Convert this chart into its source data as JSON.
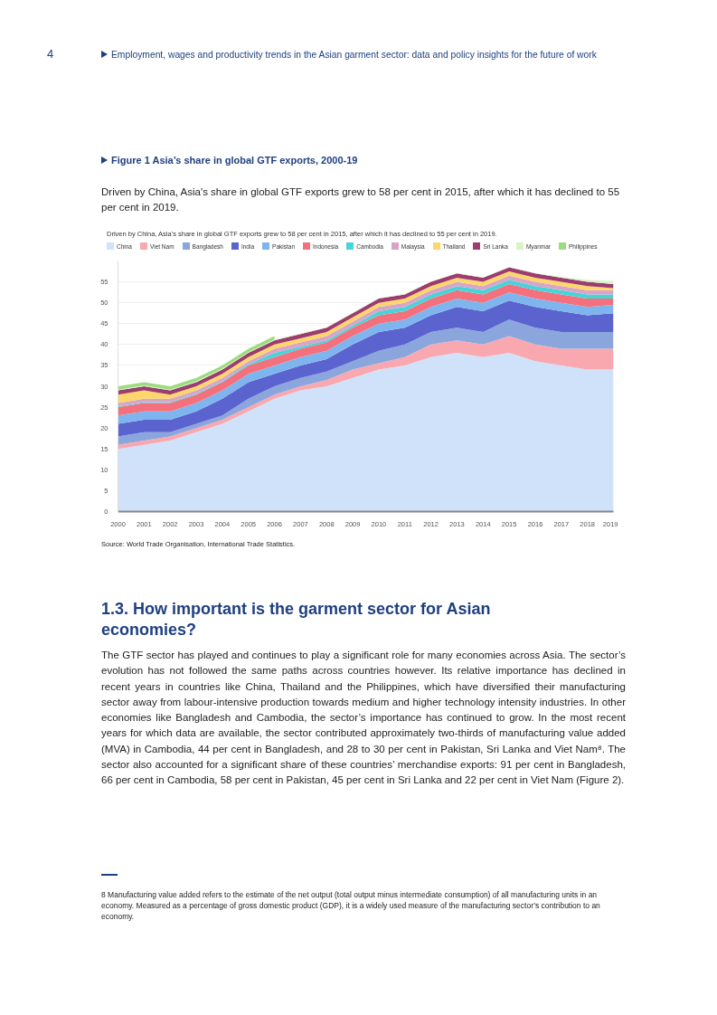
{
  "chart_data": {
    "type": "area",
    "stacked": true,
    "title": "Figure 1 Asia’s share in global GTF exports, 2000-19",
    "subtitle": "Driven by China, Asia's share in global GTF exports grew to 58 per cent in 2015, after which it has declined to 55 per cent in 2019.",
    "x": [
      2000,
      2001,
      2002,
      2003,
      2004,
      2005,
      2006,
      2007,
      2008,
      2009,
      2010,
      2011,
      2012,
      2013,
      2014,
      2015,
      2016,
      2017,
      2018,
      2019
    ],
    "series": [
      {
        "name": "China",
        "color": "#cfe2f9",
        "values": [
          15,
          16,
          17,
          19,
          21,
          24,
          27,
          29,
          30,
          32,
          34,
          35,
          37,
          38,
          37,
          38,
          36,
          35,
          34,
          34
        ]
      },
      {
        "name": "Viet Nam",
        "color": "#f9a8b0",
        "values": [
          1,
          1,
          1,
          1,
          1,
          1,
          1,
          1,
          1.5,
          2,
          1.5,
          2,
          3,
          3,
          3,
          4,
          4,
          4,
          5,
          5
        ]
      },
      {
        "name": "Bangladesh",
        "color": "#8ba6dc",
        "values": [
          2,
          2,
          1,
          1,
          1,
          2,
          2,
          2,
          2,
          2,
          3,
          3,
          3,
          3,
          3,
          4,
          4,
          4,
          4,
          4
        ]
      },
      {
        "name": "India",
        "color": "#5b63cf",
        "values": [
          3,
          3,
          3,
          3,
          4,
          4,
          3,
          3,
          3,
          4,
          4.5,
          4,
          4,
          5,
          5,
          4.5,
          5,
          5,
          4,
          4.5
        ]
      },
      {
        "name": "Pakistan",
        "color": "#7fb5ee",
        "values": [
          2,
          2,
          2,
          2,
          2,
          2,
          2,
          2,
          2,
          2,
          2,
          2,
          2,
          2,
          2,
          2,
          2,
          2,
          2,
          2
        ]
      },
      {
        "name": "Indonesia",
        "color": "#f3707c",
        "values": [
          2,
          2,
          2,
          2,
          2,
          2,
          2,
          2,
          2,
          2,
          2,
          2,
          2,
          2,
          2,
          2,
          2,
          2,
          2,
          1.5
        ]
      },
      {
        "name": "Cambodia",
        "color": "#46d4d8",
        "values": [
          0.2,
          0.2,
          0.2,
          0.2,
          0.2,
          0.3,
          1,
          0.5,
          0.5,
          0.5,
          1,
          1,
          1,
          1,
          1,
          1,
          1,
          1,
          1,
          1
        ]
      },
      {
        "name": "Malaysia",
        "color": "#d8a5c9",
        "values": [
          0.8,
          0.8,
          0.8,
          0.8,
          0.8,
          0.7,
          1,
          1,
          1,
          1,
          1,
          1,
          1,
          1,
          1,
          1,
          1,
          1,
          1,
          1
        ]
      },
      {
        "name": "Thailand",
        "color": "#fcd66b",
        "values": [
          2,
          2,
          1,
          1,
          1,
          1,
          1,
          1,
          1,
          1,
          1,
          1,
          1,
          1,
          1,
          1,
          1,
          1,
          1,
          0.5
        ]
      },
      {
        "name": "Sri Lanka",
        "color": "#9c3c6f",
        "values": [
          1,
          1,
          1,
          1,
          1,
          1,
          1,
          1,
          1,
          1,
          1,
          1,
          1,
          1,
          1,
          1,
          1,
          1,
          1,
          1
        ]
      },
      {
        "name": "Myanmar",
        "color": "#d9f2c8",
        "values": [
          0.2,
          0.2,
          0.2,
          0.2,
          0.2,
          0.2,
          0.2,
          0.1,
          0.1,
          0.1,
          0.1,
          0.1,
          0.1,
          0.1,
          0.1,
          0.1,
          0.1,
          0.2,
          0.5,
          0.7
        ]
      },
      {
        "name": "Philippines",
        "color": "#9bdc7d",
        "values": [
          0.8,
          0.8,
          0.8,
          0.8,
          0.8,
          0.8,
          0.8,
          null,
          null,
          null,
          null,
          null,
          null,
          null,
          null,
          null,
          null,
          null,
          null,
          null
        ]
      }
    ],
    "xlim": [
      2000,
      2019
    ],
    "xticks": [
      2000,
      2001,
      2002,
      2003,
      2004,
      2005,
      2006,
      2007,
      2008,
      2009,
      2010,
      2011,
      2012,
      2013,
      2014,
      2015,
      2016,
      2017,
      2018,
      2019
    ],
    "ylim": [
      0,
      60
    ],
    "yticks": [
      0,
      5,
      10,
      15,
      20,
      25,
      30,
      35,
      40,
      45,
      50,
      55
    ],
    "grid": "y",
    "legend": "top",
    "annotations": [
      "4",
      "Employment, wages and productivity trends in the Asian garment sector: data and policy insights for the future of work",
      "Driven by China, Asia's share in global GTF exports grew to 58 per cent in 2015, after which it has declined to 55 per cent in 2019.",
      "Source: World Trade Organisation, International Trade Statistics.",
      "1.3. How important is the garment sector for Asian economies?",
      "The GTF sector has played and continues to play a significant role for many economies across Asia. The sector’s evolution has not followed the same paths across countries however. Its relative importance has declined in recent years in countries like China, Thailand and the Philippines, which have diversified their manufacturing sector away from labour-intensive production towards medium and higher technology intensity industries. In other economies like Bangladesh and Cambodia, the sector’s importance has continued to grow. In the most recent years for which data are available, the sector contributed approximately two-thirds of manufacturing value added (MVA) in Cambodia, 44 per cent in Bangladesh, and 28 to 30 per cent in Pakistan, Sri Lanka and Viet Nam⁸. The sector also accounted for a significant share of these countries’ merchandise exports: 91 per cent in Bangladesh, 66 per cent in Cambodia, 58 per cent in Pakistan, 45 per cent in Sri Lanka and 22 per cent in Viet Nam (Figure 2).",
      "8 Manufacturing value added refers to the estimate of the net output (total output minus intermediate consumption) of all manufacturing units in an economy. Measured as a percentage of gross domestic product (GDP), it is a widely used measure of the manufacturing sector’s contribution to an economy."
    ]
  }
}
